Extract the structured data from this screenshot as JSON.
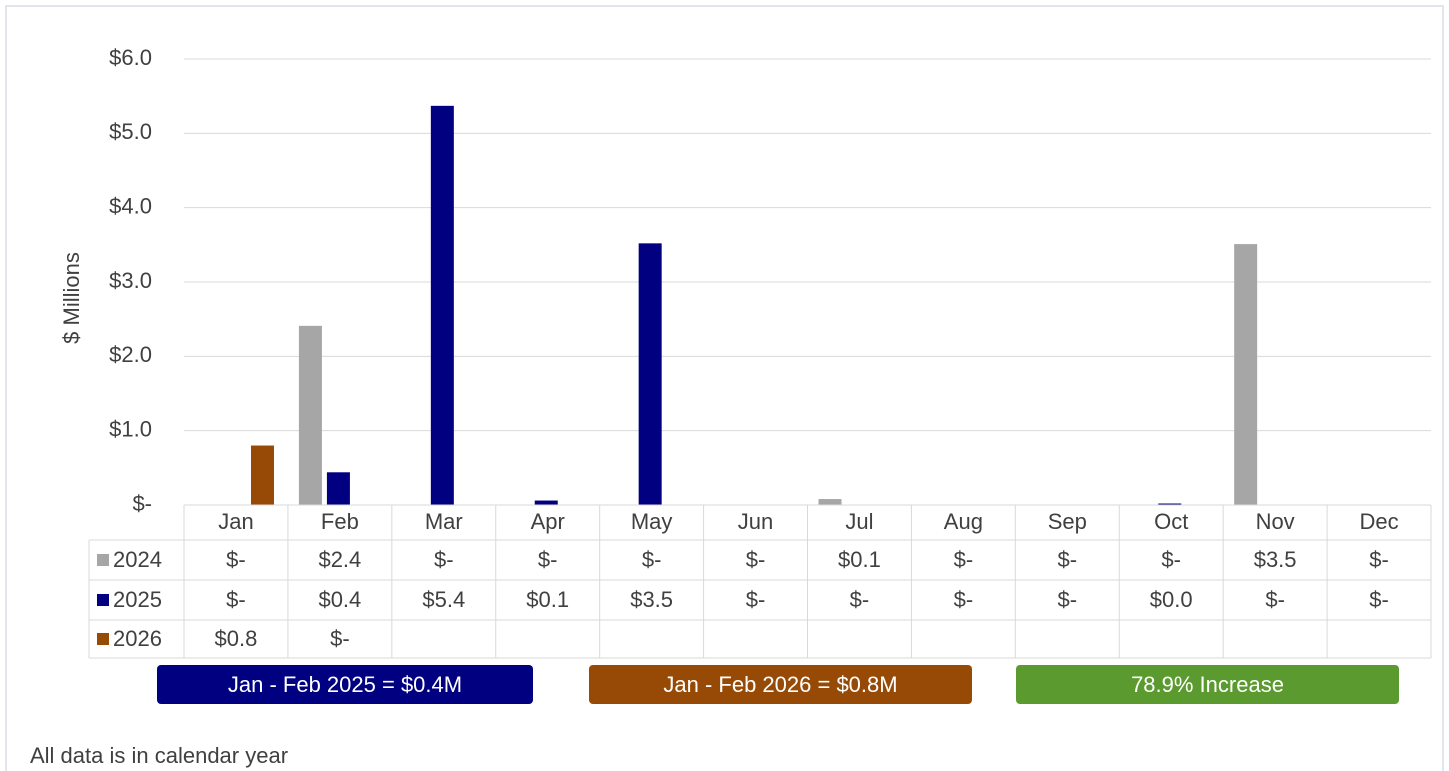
{
  "chart_data": {
    "type": "bar",
    "y_axis_label": "$ Millions",
    "categories": [
      "Jan",
      "Feb",
      "Mar",
      "Apr",
      "May",
      "Jun",
      "Jul",
      "Aug",
      "Sep",
      "Oct",
      "Nov",
      "Dec"
    ],
    "series": [
      {
        "name": "2024",
        "color": "#a6a6a6",
        "values": [
          0,
          2.41,
          0,
          0,
          0,
          0,
          0.08,
          0,
          0,
          0,
          3.51,
          0
        ],
        "value_labels": [
          "$-",
          "$2.4",
          "$-",
          "$-",
          "$-",
          "$-",
          "$0.1",
          "$-",
          "$-",
          "$-",
          "$3.5",
          "$-"
        ]
      },
      {
        "name": "2025",
        "color": "#000080",
        "values": [
          0,
          0.44,
          5.37,
          0.06,
          3.52,
          0,
          0,
          0,
          0,
          0.02,
          0,
          0
        ],
        "value_labels": [
          "$-",
          "$0.4",
          "$5.4",
          "$0.1",
          "$3.5",
          "$-",
          "$-",
          "$-",
          "$-",
          "$0.0",
          "$-",
          "$-"
        ]
      },
      {
        "name": "2026",
        "color": "#974a06",
        "values": [
          0.8,
          0,
          null,
          null,
          null,
          null,
          null,
          null,
          null,
          null,
          null,
          null
        ],
        "value_labels": [
          "$0.8",
          "$-",
          null,
          null,
          null,
          null,
          null,
          null,
          null,
          null,
          null,
          null
        ]
      }
    ],
    "ylim": [
      0,
      6
    ],
    "yticks": [
      {
        "value": 0,
        "label": "$-"
      },
      {
        "value": 1,
        "label": "$1.0"
      },
      {
        "value": 2,
        "label": "$2.0"
      },
      {
        "value": 3,
        "label": "$3.0"
      },
      {
        "value": 4,
        "label": "$4.0"
      },
      {
        "value": 5,
        "label": "$5.0"
      },
      {
        "value": 6,
        "label": "$6.0"
      }
    ],
    "grid": true,
    "annotations": [
      {
        "text": "Jan - Feb 2025 = $0.4M",
        "color": "#000080"
      },
      {
        "text": "Jan - Feb 2026 = $0.8M",
        "color": "#974a06"
      },
      {
        "text": "78.9% Increase",
        "color": "#5b9a2e"
      }
    ],
    "footnote": "All data is in calendar year"
  }
}
